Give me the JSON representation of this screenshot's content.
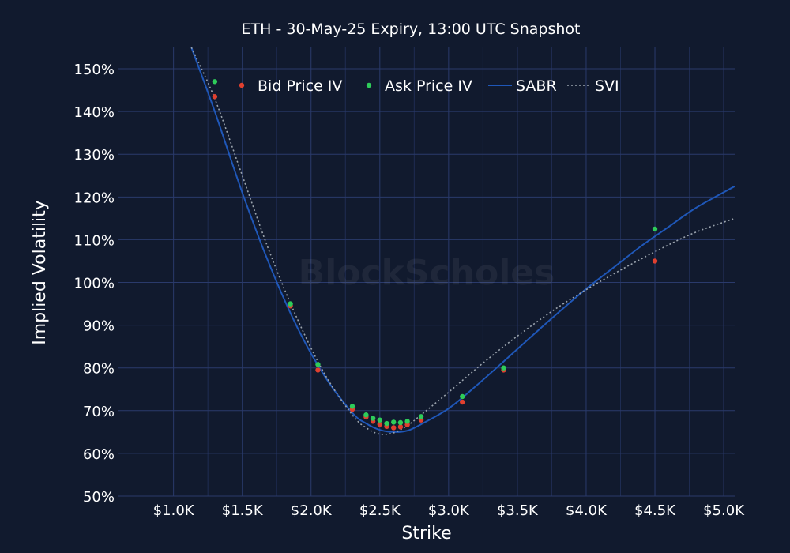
{
  "chart_data": {
    "type": "scatter",
    "title": "ETH - 30-May-25 Expiry, 13:00 UTC Snapshot",
    "xlabel": "Strike",
    "ylabel": "Implied Volatility",
    "watermark": "BlockScholes",
    "xlim": [
      600,
      5080
    ],
    "ylim": [
      50,
      155
    ],
    "xticks": [
      1000,
      1500,
      2000,
      2500,
      3000,
      3500,
      4000,
      4500,
      5000
    ],
    "xtick_labels": [
      "$1.0K",
      "$1.5K",
      "$2.0K",
      "$2.5K",
      "$3.0K",
      "$3.5K",
      "$4.0K",
      "$4.5K",
      "$5.0K"
    ],
    "yticks": [
      50,
      60,
      70,
      80,
      90,
      100,
      110,
      120,
      130,
      140,
      150
    ],
    "ytick_labels": [
      "50%",
      "60%",
      "70%",
      "80%",
      "90%",
      "100%",
      "110%",
      "120%",
      "130%",
      "140%",
      "150%"
    ],
    "legend": [
      {
        "name": "Bid Price IV",
        "kind": "marker",
        "color": "#e0402f"
      },
      {
        "name": "Ask Price IV",
        "kind": "marker",
        "color": "#2ecc5a"
      },
      {
        "name": "SABR",
        "kind": "line",
        "color": "#1f57b8"
      },
      {
        "name": "SVI",
        "kind": "dotted",
        "color": "#9aa3ad"
      }
    ],
    "series": [
      {
        "name": "Bid Price IV",
        "kind": "scatter",
        "color": "#e0402f",
        "x": [
          1300,
          1850,
          2050,
          2300,
          2400,
          2450,
          2500,
          2550,
          2600,
          2650,
          2700,
          2800,
          3100,
          3400,
          4500
        ],
        "y": [
          143.5,
          94.5,
          79.5,
          70.3,
          68.5,
          67.5,
          66.8,
          66.3,
          66.0,
          66.2,
          66.7,
          67.8,
          72.0,
          79.5,
          105.0
        ]
      },
      {
        "name": "Ask Price IV",
        "kind": "scatter",
        "color": "#2ecc5a",
        "x": [
          1300,
          1850,
          2050,
          2300,
          2400,
          2450,
          2500,
          2550,
          2600,
          2650,
          2700,
          2800,
          3100,
          3400,
          4500
        ],
        "y": [
          147.0,
          95.0,
          80.8,
          71.0,
          69.0,
          68.2,
          67.8,
          67.0,
          67.3,
          67.2,
          67.5,
          68.6,
          73.3,
          80.0,
          112.5
        ]
      },
      {
        "name": "SABR",
        "kind": "line",
        "color": "#1f57b8",
        "x": [
          1130,
          1300,
          1500,
          1700,
          1900,
          2100,
          2300,
          2400,
          2500,
          2600,
          2700,
          2800,
          3000,
          3200,
          3400,
          3600,
          3800,
          4000,
          4200,
          4400,
          4600,
          4800,
          5080
        ],
        "y": [
          155.0,
          140.0,
          121.0,
          104.0,
          89.5,
          78.0,
          69.5,
          67.0,
          65.5,
          65.0,
          65.3,
          66.8,
          70.5,
          75.8,
          81.5,
          87.3,
          93.0,
          98.5,
          103.5,
          108.5,
          113.0,
          117.5,
          122.5
        ]
      },
      {
        "name": "SVI",
        "kind": "dotted",
        "color": "#9aa3ad",
        "x": [
          1130,
          1300,
          1500,
          1700,
          1900,
          2100,
          2300,
          2400,
          2500,
          2600,
          2700,
          2800,
          3000,
          3200,
          3400,
          3600,
          3800,
          4000,
          4200,
          4400,
          4600,
          4800,
          5080
        ],
        "y": [
          155.0,
          143.0,
          125.0,
          107.0,
          91.5,
          78.5,
          69.0,
          66.0,
          64.5,
          64.8,
          66.5,
          69.0,
          74.3,
          79.8,
          85.0,
          89.8,
          94.3,
          98.3,
          102.0,
          105.5,
          108.8,
          111.8,
          115.0
        ]
      }
    ]
  }
}
